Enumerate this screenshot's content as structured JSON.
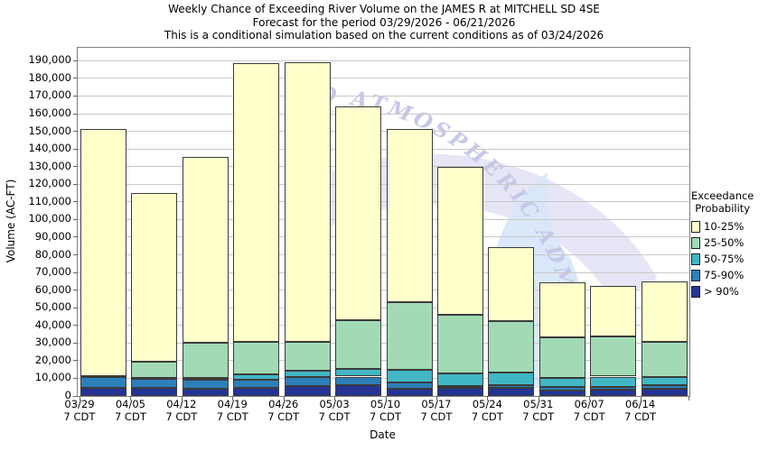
{
  "title": {
    "line1": "Weekly Chance of Exceeding River Volume on the JAMES R at MITCHELL SD 4SE",
    "line2": "Forecast for the period 03/29/2026 - 06/21/2026",
    "line3": "This is a conditional simulation based on the current conditions as of 03/24/2026"
  },
  "axes": {
    "y_label": "Volume (AC-FT)",
    "x_label": "Date",
    "y_tick_step": 10000,
    "y_tick_max": 190000
  },
  "legend": {
    "title_line1": "Exceedance",
    "title_line2": "Probability",
    "items": [
      {
        "label": "10-25%",
        "color": "#FFFFCC"
      },
      {
        "label": "25-50%",
        "color": "#A1DAB4"
      },
      {
        "label": "50-75%",
        "color": "#41B6C4"
      },
      {
        "label": "75-90%",
        "color": "#2C7FB8"
      },
      {
        "label": "> 90%",
        "color": "#253494"
      }
    ]
  },
  "watermark": {
    "arc_text": "D ATMOSPHERIC ADMINISTRATIO"
  },
  "chart_data": {
    "type": "bar",
    "stacked": true,
    "title": "Weekly Chance of Exceeding River Volume on the JAMES R at MITCHELL SD 4SE",
    "xlabel": "Date",
    "ylabel": "Volume (AC-FT)",
    "ylim": [
      0,
      190000
    ],
    "grid": true,
    "legend_position": "right",
    "x": [
      "03/29",
      "04/05",
      "04/12",
      "04/19",
      "04/26",
      "05/03",
      "05/10",
      "05/17",
      "05/24",
      "05/31",
      "06/07",
      "06/14"
    ],
    "x_sublabel": "7 CDT",
    "series": [
      {
        "name": "> 90%",
        "color": "#253494",
        "values": [
          4500,
          4500,
          4000,
          4500,
          5500,
          6000,
          4000,
          4500,
          4500,
          3000,
          3500,
          4000
        ]
      },
      {
        "name": "75-90%",
        "color": "#2C7FB8",
        "values": [
          6000,
          5000,
          5000,
          4500,
          5000,
          5000,
          3500,
          1000,
          1500,
          2000,
          1500,
          2000
        ]
      },
      {
        "name": "50-75%",
        "color": "#41B6C4",
        "values": [
          500,
          500,
          1000,
          3500,
          4000,
          4500,
          7500,
          7500,
          7500,
          5000,
          6000,
          4500
        ]
      },
      {
        "name": "25-50%",
        "color": "#A1DAB4",
        "values": [
          500,
          9500,
          20000,
          18000,
          16000,
          27500,
          38000,
          33000,
          29000,
          23000,
          23000,
          20000
        ]
      },
      {
        "name": "10-25%",
        "color": "#FFFFCC",
        "values": [
          140000,
          95500,
          105500,
          158000,
          158500,
          121000,
          98500,
          84000,
          42000,
          31500,
          28500,
          34500
        ]
      }
    ],
    "stacked_totals": [
      151500,
      115000,
      135500,
      188500,
      189000,
      164000,
      151500,
      130000,
      84500,
      64500,
      62500,
      65000
    ]
  }
}
